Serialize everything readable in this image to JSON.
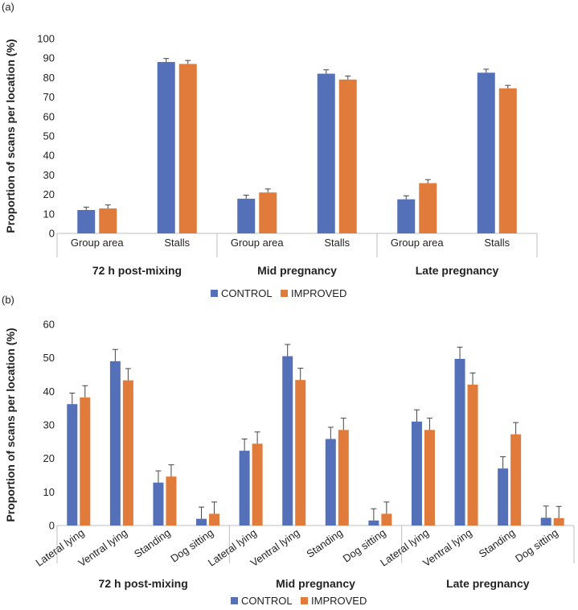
{
  "chart_data": [
    {
      "type": "bar",
      "panel_label": "(a)",
      "ylabel": "Proportion of scans per location (%)",
      "ylim": [
        0,
        100
      ],
      "yticks": [
        0,
        10,
        20,
        30,
        40,
        50,
        60,
        70,
        80,
        90,
        100
      ],
      "groups": [
        {
          "label": "72 h post-mixing",
          "categories": [
            "Group area",
            "Stalls"
          ]
        },
        {
          "label": "Mid pregnancy",
          "categories": [
            "Group area",
            "Stalls"
          ]
        },
        {
          "label": "Late pregnancy",
          "categories": [
            "Group area",
            "Stalls"
          ]
        }
      ],
      "series": [
        {
          "name": "CONTROL",
          "color": "#5470b8",
          "values": [
            12,
            88,
            17.8,
            82,
            17.5,
            82.5
          ],
          "errors": [
            1.5,
            1.8,
            1.8,
            2,
            1.8,
            1.8
          ]
        },
        {
          "name": "IMPROVED",
          "color": "#e07b3b",
          "values": [
            12.8,
            87,
            21,
            79,
            25.8,
            74.5
          ],
          "errors": [
            1.8,
            1.8,
            1.8,
            1.8,
            1.8,
            1.5
          ]
        }
      ],
      "legend": [
        "CONTROL",
        "IMPROVED"
      ]
    },
    {
      "type": "bar",
      "panel_label": "(b)",
      "ylabel": "Proportion of scans per location (%)",
      "ylim": [
        0,
        60
      ],
      "yticks": [
        0,
        10,
        20,
        30,
        40,
        50,
        60
      ],
      "groups": [
        {
          "label": "72 h post-mixing",
          "categories": [
            "Lateral lying",
            "Ventral lying",
            "Standing",
            "Dog sitting"
          ]
        },
        {
          "label": "Mid pregnancy",
          "categories": [
            "Lateral lying",
            "Ventral lying",
            "Standing",
            "Dog sitting"
          ]
        },
        {
          "label": "Late pregnancy",
          "categories": [
            "Lateral lying",
            "Ventral lying",
            "Standing",
            "Dog sitting"
          ]
        }
      ],
      "series": [
        {
          "name": "CONTROL",
          "color": "#5470b8",
          "values": [
            36.2,
            49,
            12.8,
            2,
            22.3,
            50.5,
            25.8,
            1.5,
            31,
            49.7,
            17,
            2.3
          ],
          "errors": [
            3.3,
            3.5,
            3.5,
            3.5,
            3.5,
            3.5,
            3.5,
            3.5,
            3.5,
            3.5,
            3.5,
            3.5
          ]
        },
        {
          "name": "IMPROVED",
          "color": "#e07b3b",
          "values": [
            38.2,
            43.3,
            14.6,
            3.5,
            24.4,
            43.4,
            28.5,
            3.5,
            28.5,
            42,
            27.2,
            2.2
          ],
          "errors": [
            3.5,
            3.5,
            3.5,
            3.5,
            3.5,
            3.5,
            3.5,
            3.5,
            3.5,
            3.5,
            3.5,
            3.5
          ]
        }
      ],
      "legend": [
        "CONTROL",
        "IMPROVED"
      ]
    }
  ]
}
